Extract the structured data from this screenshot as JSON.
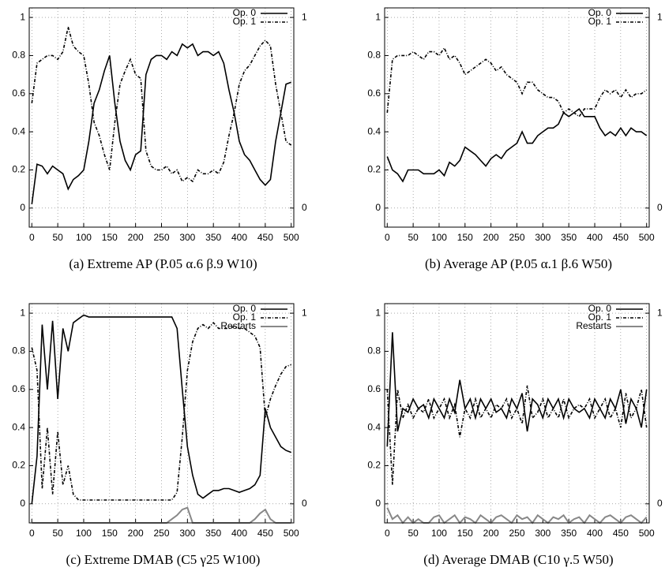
{
  "chart_data": [
    {
      "type": "line",
      "caption": "(a) Extreme AP (P.05 α.6 β.9 W10)",
      "legend": "upper right",
      "xgrid": true,
      "y2grid": true,
      "x": [
        0,
        10,
        20,
        30,
        40,
        50,
        60,
        70,
        80,
        90,
        100,
        110,
        120,
        130,
        140,
        150,
        160,
        170,
        180,
        190,
        200,
        210,
        220,
        230,
        240,
        250,
        260,
        270,
        280,
        290,
        300,
        310,
        320,
        330,
        340,
        350,
        360,
        370,
        380,
        390,
        400,
        410,
        420,
        430,
        440,
        450,
        460,
        470,
        480,
        490,
        500
      ],
      "xlim": [
        -5,
        505
      ],
      "xticks": [
        0,
        50,
        100,
        150,
        200,
        250,
        300,
        350,
        400,
        450,
        500
      ],
      "ylim": [
        -0.1,
        1.05
      ],
      "yticks": [
        0,
        0.2,
        0.4,
        0.6,
        0.8,
        1
      ],
      "y2lim": [
        -0.1,
        1.05
      ],
      "y2ticks": [
        0,
        1
      ],
      "series": [
        {
          "name": "Op. 0",
          "color": "#000000",
          "dash": "none",
          "values": [
            0.02,
            0.23,
            0.22,
            0.18,
            0.22,
            0.2,
            0.18,
            0.1,
            0.15,
            0.17,
            0.2,
            0.35,
            0.55,
            0.62,
            0.72,
            0.8,
            0.55,
            0.35,
            0.25,
            0.2,
            0.28,
            0.3,
            0.7,
            0.78,
            0.8,
            0.8,
            0.78,
            0.82,
            0.8,
            0.86,
            0.84,
            0.86,
            0.8,
            0.82,
            0.82,
            0.8,
            0.82,
            0.76,
            0.62,
            0.5,
            0.35,
            0.28,
            0.25,
            0.2,
            0.15,
            0.12,
            0.15,
            0.35,
            0.5,
            0.65,
            0.66
          ]
        },
        {
          "name": "Op. 1",
          "color": "#000000",
          "dash": "4,2,1,2",
          "values": [
            0.55,
            0.76,
            0.78,
            0.8,
            0.8,
            0.78,
            0.82,
            0.95,
            0.85,
            0.82,
            0.8,
            0.65,
            0.45,
            0.38,
            0.28,
            0.2,
            0.45,
            0.65,
            0.72,
            0.78,
            0.7,
            0.68,
            0.3,
            0.22,
            0.2,
            0.2,
            0.22,
            0.18,
            0.2,
            0.14,
            0.16,
            0.14,
            0.2,
            0.18,
            0.18,
            0.2,
            0.18,
            0.24,
            0.38,
            0.5,
            0.65,
            0.72,
            0.75,
            0.8,
            0.85,
            0.88,
            0.85,
            0.65,
            0.5,
            0.35,
            0.33
          ]
        }
      ]
    },
    {
      "type": "line",
      "caption": "(b) Average AP (P.05 α.1 β.6 W50)",
      "legend": "upper right",
      "xgrid": true,
      "y2grid": true,
      "x": [
        0,
        10,
        20,
        30,
        40,
        50,
        60,
        70,
        80,
        90,
        100,
        110,
        120,
        130,
        140,
        150,
        160,
        170,
        180,
        190,
        200,
        210,
        220,
        230,
        240,
        250,
        260,
        270,
        280,
        290,
        300,
        310,
        320,
        330,
        340,
        350,
        360,
        370,
        380,
        390,
        400,
        410,
        420,
        430,
        440,
        450,
        460,
        470,
        480,
        490,
        500
      ],
      "xlim": [
        -5,
        505
      ],
      "xticks": [
        0,
        50,
        100,
        150,
        200,
        250,
        300,
        350,
        400,
        450,
        500
      ],
      "ylim": [
        -0.1,
        1.05
      ],
      "yticks": [
        0,
        0.2,
        0.4,
        0.6,
        0.8,
        1
      ],
      "y2lim": [
        -0.1,
        1.05
      ],
      "y2ticks": [
        0,
        1
      ],
      "series": [
        {
          "name": "Op. 0",
          "color": "#000000",
          "dash": "none",
          "values": [
            0.27,
            0.2,
            0.18,
            0.14,
            0.2,
            0.2,
            0.2,
            0.18,
            0.18,
            0.18,
            0.2,
            0.17,
            0.24,
            0.22,
            0.25,
            0.32,
            0.3,
            0.28,
            0.25,
            0.22,
            0.26,
            0.28,
            0.26,
            0.3,
            0.32,
            0.34,
            0.4,
            0.34,
            0.34,
            0.38,
            0.4,
            0.42,
            0.42,
            0.44,
            0.5,
            0.48,
            0.5,
            0.52,
            0.48,
            0.48,
            0.48,
            0.42,
            0.38,
            0.4,
            0.38,
            0.42,
            0.38,
            0.42,
            0.4,
            0.4,
            0.38
          ]
        },
        {
          "name": "Op. 1",
          "color": "#000000",
          "dash": "4,2,1,2",
          "values": [
            0.5,
            0.78,
            0.8,
            0.8,
            0.8,
            0.82,
            0.8,
            0.78,
            0.82,
            0.82,
            0.8,
            0.84,
            0.78,
            0.8,
            0.76,
            0.7,
            0.72,
            0.74,
            0.76,
            0.78,
            0.76,
            0.72,
            0.74,
            0.7,
            0.68,
            0.66,
            0.6,
            0.66,
            0.66,
            0.62,
            0.6,
            0.58,
            0.58,
            0.56,
            0.5,
            0.52,
            0.5,
            0.48,
            0.52,
            0.52,
            0.52,
            0.58,
            0.62,
            0.6,
            0.62,
            0.58,
            0.62,
            0.58,
            0.6,
            0.6,
            0.62
          ]
        }
      ]
    },
    {
      "type": "line",
      "caption": "(c) Extreme DMAB (C5 γ25 W100)",
      "legend": "upper right",
      "xgrid": true,
      "y2grid": true,
      "x": [
        0,
        10,
        20,
        30,
        40,
        50,
        60,
        70,
        80,
        90,
        100,
        110,
        120,
        130,
        140,
        150,
        160,
        170,
        180,
        190,
        200,
        210,
        220,
        230,
        240,
        250,
        260,
        270,
        280,
        290,
        300,
        310,
        320,
        330,
        340,
        350,
        360,
        370,
        380,
        390,
        400,
        410,
        420,
        430,
        440,
        450,
        460,
        470,
        480,
        490,
        500
      ],
      "xlim": [
        -5,
        505
      ],
      "xticks": [
        0,
        50,
        100,
        150,
        200,
        250,
        300,
        350,
        400,
        450,
        500
      ],
      "ylim": [
        -0.1,
        1.05
      ],
      "yticks": [
        0,
        0.2,
        0.4,
        0.6,
        0.8,
        1
      ],
      "y2lim": [
        -0.1,
        1.05
      ],
      "y2ticks": [
        0,
        1
      ],
      "series": [
        {
          "name": "Op. 0",
          "color": "#000000",
          "dash": "none",
          "values": [
            0.0,
            0.25,
            0.94,
            0.6,
            0.96,
            0.55,
            0.92,
            0.8,
            0.95,
            0.97,
            0.99,
            0.98,
            0.98,
            0.98,
            0.98,
            0.98,
            0.98,
            0.98,
            0.98,
            0.98,
            0.98,
            0.98,
            0.98,
            0.98,
            0.98,
            0.98,
            0.98,
            0.98,
            0.92,
            0.6,
            0.3,
            0.15,
            0.05,
            0.03,
            0.05,
            0.07,
            0.07,
            0.08,
            0.08,
            0.07,
            0.06,
            0.07,
            0.08,
            0.1,
            0.15,
            0.5,
            0.4,
            0.35,
            0.3,
            0.28,
            0.27
          ]
        },
        {
          "name": "Op. 1",
          "color": "#000000",
          "dash": "4,2,1,2",
          "values": [
            0.82,
            0.7,
            0.08,
            0.4,
            0.05,
            0.38,
            0.1,
            0.2,
            0.05,
            0.02,
            0.02,
            0.02,
            0.02,
            0.02,
            0.02,
            0.02,
            0.02,
            0.02,
            0.02,
            0.02,
            0.02,
            0.02,
            0.02,
            0.02,
            0.02,
            0.02,
            0.02,
            0.02,
            0.06,
            0.35,
            0.7,
            0.85,
            0.92,
            0.94,
            0.92,
            0.95,
            0.92,
            0.92,
            0.92,
            0.93,
            0.92,
            0.92,
            0.9,
            0.88,
            0.82,
            0.45,
            0.55,
            0.62,
            0.68,
            0.72,
            0.73
          ]
        },
        {
          "name": "Restarts",
          "color": "#888888",
          "dash": "none",
          "values": [
            -0.1,
            -0.1,
            -0.1,
            -0.1,
            -0.1,
            -0.1,
            -0.1,
            -0.1,
            -0.1,
            -0.1,
            -0.1,
            -0.1,
            -0.1,
            -0.1,
            -0.1,
            -0.1,
            -0.1,
            -0.1,
            -0.1,
            -0.1,
            -0.1,
            -0.1,
            -0.1,
            -0.1,
            -0.1,
            -0.1,
            -0.1,
            -0.08,
            -0.06,
            -0.03,
            -0.02,
            -0.1,
            -0.1,
            -0.1,
            -0.1,
            -0.1,
            -0.1,
            -0.1,
            -0.1,
            -0.1,
            -0.1,
            -0.1,
            -0.1,
            -0.08,
            -0.05,
            -0.03,
            -0.08,
            -0.1,
            -0.1,
            -0.1,
            -0.1
          ]
        }
      ]
    },
    {
      "type": "line",
      "caption": "(d) Average DMAB (C10 γ.5 W50)",
      "legend": "upper right",
      "xgrid": true,
      "y2grid": true,
      "x": [
        0,
        10,
        20,
        30,
        40,
        50,
        60,
        70,
        80,
        90,
        100,
        110,
        120,
        130,
        140,
        150,
        160,
        170,
        180,
        190,
        200,
        210,
        220,
        230,
        240,
        250,
        260,
        270,
        280,
        290,
        300,
        310,
        320,
        330,
        340,
        350,
        360,
        370,
        380,
        390,
        400,
        410,
        420,
        430,
        440,
        450,
        460,
        470,
        480,
        490,
        500
      ],
      "xlim": [
        -5,
        505
      ],
      "xticks": [
        0,
        50,
        100,
        150,
        200,
        250,
        300,
        350,
        400,
        450,
        500
      ],
      "ylim": [
        -0.1,
        1.05
      ],
      "yticks": [
        0,
        0.2,
        0.4,
        0.6,
        0.8,
        1
      ],
      "y2lim": [
        -0.1,
        1.05
      ],
      "y2ticks": [
        0,
        1
      ],
      "series": [
        {
          "name": "Op. 0",
          "color": "#000000",
          "dash": "none",
          "values": [
            0.3,
            0.9,
            0.38,
            0.5,
            0.48,
            0.55,
            0.5,
            0.52,
            0.45,
            0.55,
            0.5,
            0.45,
            0.55,
            0.48,
            0.65,
            0.5,
            0.55,
            0.45,
            0.55,
            0.5,
            0.55,
            0.48,
            0.5,
            0.45,
            0.55,
            0.5,
            0.58,
            0.38,
            0.55,
            0.52,
            0.45,
            0.55,
            0.5,
            0.55,
            0.45,
            0.55,
            0.5,
            0.48,
            0.5,
            0.45,
            0.55,
            0.5,
            0.45,
            0.55,
            0.5,
            0.6,
            0.42,
            0.55,
            0.5,
            0.4,
            0.6
          ]
        },
        {
          "name": "Op. 1",
          "color": "#000000",
          "dash": "4,2,1,2",
          "values": [
            0.6,
            0.1,
            0.6,
            0.45,
            0.52,
            0.45,
            0.5,
            0.48,
            0.55,
            0.45,
            0.5,
            0.55,
            0.45,
            0.52,
            0.35,
            0.5,
            0.45,
            0.55,
            0.45,
            0.5,
            0.45,
            0.52,
            0.5,
            0.55,
            0.45,
            0.5,
            0.42,
            0.62,
            0.45,
            0.48,
            0.55,
            0.45,
            0.5,
            0.45,
            0.55,
            0.45,
            0.5,
            0.52,
            0.5,
            0.55,
            0.45,
            0.5,
            0.55,
            0.45,
            0.5,
            0.4,
            0.58,
            0.45,
            0.5,
            0.6,
            0.4
          ]
        },
        {
          "name": "Restarts",
          "color": "#888888",
          "dash": "none",
          "values": [
            -0.02,
            -0.08,
            -0.06,
            -0.1,
            -0.07,
            -0.1,
            -0.08,
            -0.1,
            -0.1,
            -0.07,
            -0.06,
            -0.1,
            -0.08,
            -0.06,
            -0.1,
            -0.07,
            -0.08,
            -0.1,
            -0.06,
            -0.08,
            -0.1,
            -0.07,
            -0.06,
            -0.08,
            -0.1,
            -0.06,
            -0.08,
            -0.07,
            -0.1,
            -0.06,
            -0.08,
            -0.1,
            -0.07,
            -0.08,
            -0.06,
            -0.1,
            -0.08,
            -0.07,
            -0.1,
            -0.06,
            -0.08,
            -0.1,
            -0.07,
            -0.06,
            -0.08,
            -0.1,
            -0.07,
            -0.06,
            -0.08,
            -0.1,
            -0.07
          ]
        }
      ]
    }
  ]
}
